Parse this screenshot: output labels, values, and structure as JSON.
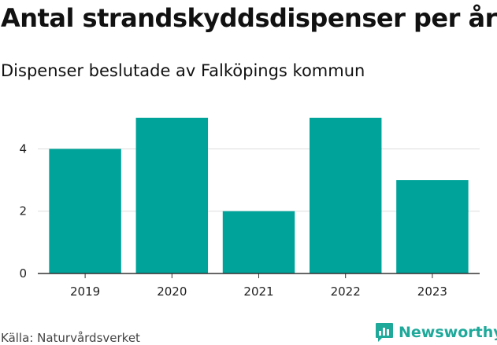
{
  "chart_data": {
    "type": "bar",
    "title": "Antal strandskyddsdispenser per år",
    "subtitle": "Dispenser beslutade av Falköpings kommun",
    "categories": [
      "2019",
      "2020",
      "2021",
      "2022",
      "2023"
    ],
    "values": [
      4,
      5,
      2,
      5,
      3
    ],
    "xlabel": "",
    "ylabel": "",
    "ylim": [
      0,
      5.5
    ],
    "yticks": [
      0,
      2,
      4
    ],
    "grid": true,
    "bar_color": "#00a39a"
  },
  "footer": {
    "source": "Källa: Naturvårdsverket",
    "brand": "Newsworthy",
    "brand_color": "#1fa99b",
    "brand_icon": "bar-chart-icon"
  }
}
